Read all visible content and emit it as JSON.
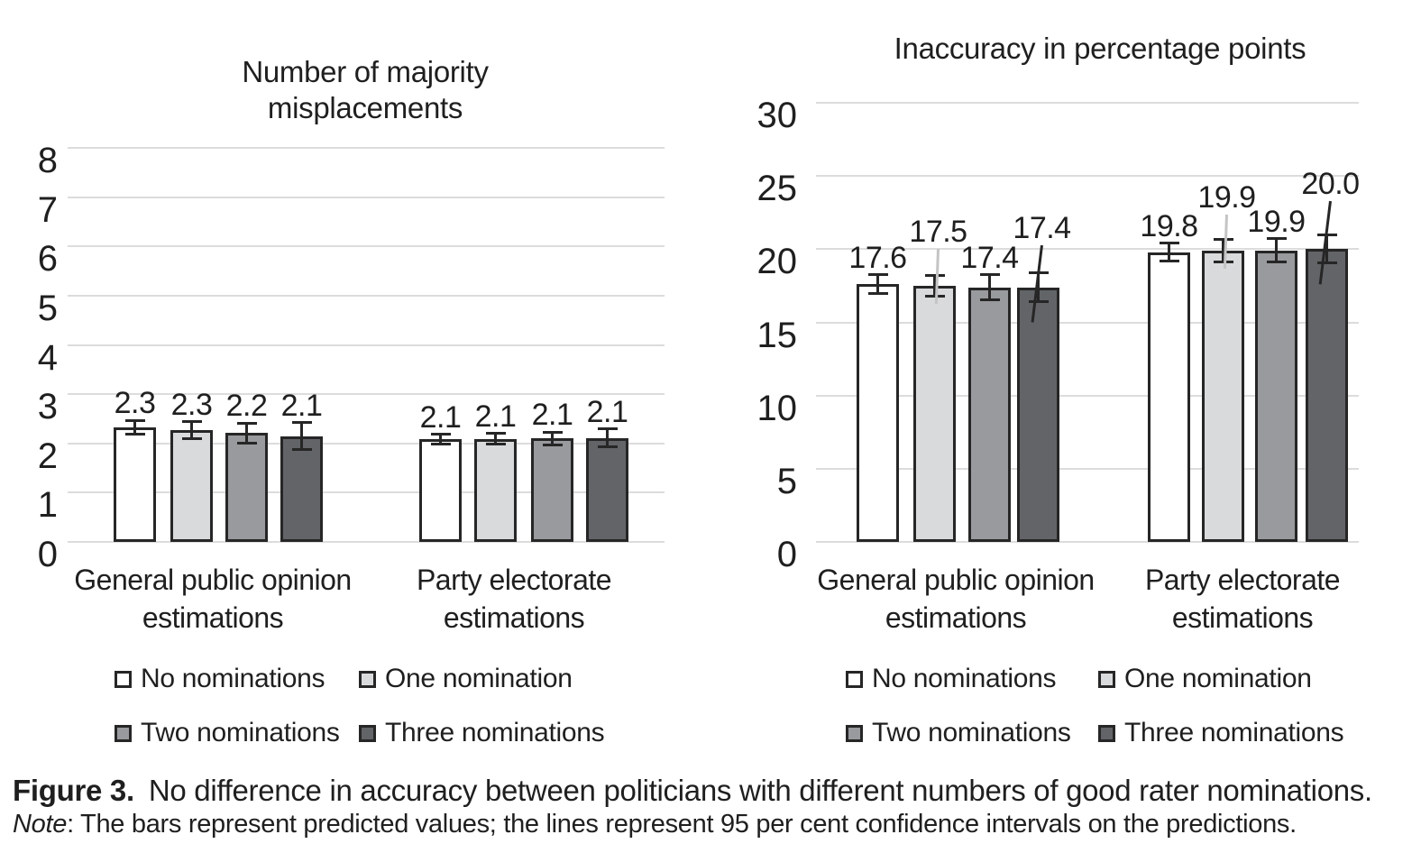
{
  "figure": {
    "caption_label": "Figure 3.",
    "caption_text": "No difference in accuracy between politicians with different numbers of good rater nominations.",
    "note_label": "Note",
    "note_text": ": The bars represent predicted values; the lines represent 95 per cent confidence intervals on the predictions."
  },
  "colors": {
    "text": "#1f1f1f",
    "gridline": "#dcdcdc",
    "bar_stroke": "#262626",
    "fill_no_nominations": "#ffffff",
    "fill_one_nomination": "#d9dadb",
    "fill_two_nominations": "#989a9d",
    "fill_three_nominations": "#626467",
    "leader_gray": "#c4c4c4"
  },
  "chart_data": [
    {
      "type": "bar",
      "title": [
        "Number of majority",
        "misplacements"
      ],
      "categories": [
        [
          "General public opinion",
          "estimations"
        ],
        [
          "Party electorate",
          "estimations"
        ]
      ],
      "ylim": [
        0,
        8
      ],
      "ytick_step": 1,
      "grid": true,
      "legend_position": "bottom",
      "error_bars": "95% confidence interval",
      "series": [
        {
          "name": "No nominations",
          "fill": "#ffffff",
          "values": [
            2.33,
            2.08
          ],
          "ci": [
            0.14,
            0.1
          ],
          "labels": [
            "2.3",
            "2.1"
          ]
        },
        {
          "name": "One nomination",
          "fill": "#d9dadb",
          "values": [
            2.27,
            2.09
          ],
          "ci": [
            0.17,
            0.11
          ],
          "labels": [
            "2.3",
            "2.1"
          ]
        },
        {
          "name": "Two nominations",
          "fill": "#989a9d",
          "values": [
            2.21,
            2.1
          ],
          "ci": [
            0.2,
            0.13
          ],
          "labels": [
            "2.2",
            "2.1"
          ]
        },
        {
          "name": "Three nominations",
          "fill": "#626467",
          "values": [
            2.15,
            2.11
          ],
          "ci": [
            0.27,
            0.18
          ],
          "labels": [
            "2.1",
            "2.1"
          ]
        }
      ]
    },
    {
      "type": "bar",
      "title": [
        "Inaccuracy in percentage points"
      ],
      "categories": [
        [
          "General public opinion",
          "estimations"
        ],
        [
          "Party electorate",
          "estimations"
        ]
      ],
      "ylim": [
        0,
        30
      ],
      "ytick_step": 5,
      "grid": true,
      "legend_position": "bottom",
      "error_bars": "95% confidence interval",
      "series": [
        {
          "name": "No nominations",
          "fill": "#ffffff",
          "values": [
            17.6,
            19.8
          ],
          "ci": [
            0.65,
            0.6
          ],
          "labels": [
            "17.6",
            "19.8"
          ]
        },
        {
          "name": "One nomination",
          "fill": "#d9dadb",
          "values": [
            17.5,
            19.9
          ],
          "ci": [
            0.7,
            0.75
          ],
          "labels": [
            "17.5",
            "19.9"
          ],
          "label_raised": true,
          "label_raise": [
            30,
            28
          ],
          "leader_color": "#c4c4c4"
        },
        {
          "name": "Two nominations",
          "fill": "#989a9d",
          "values": [
            17.4,
            19.9
          ],
          "ci": [
            0.85,
            0.8
          ],
          "labels": [
            "17.4",
            "19.9"
          ]
        },
        {
          "name": "Three nominations",
          "fill": "#626467",
          "values": [
            17.4,
            20.0
          ],
          "ci": [
            1.0,
            0.95
          ],
          "labels": [
            "17.4",
            "20.0"
          ],
          "label_raised": true,
          "label_raise": [
            30,
            38
          ],
          "leader_color": "#262626"
        }
      ]
    }
  ]
}
